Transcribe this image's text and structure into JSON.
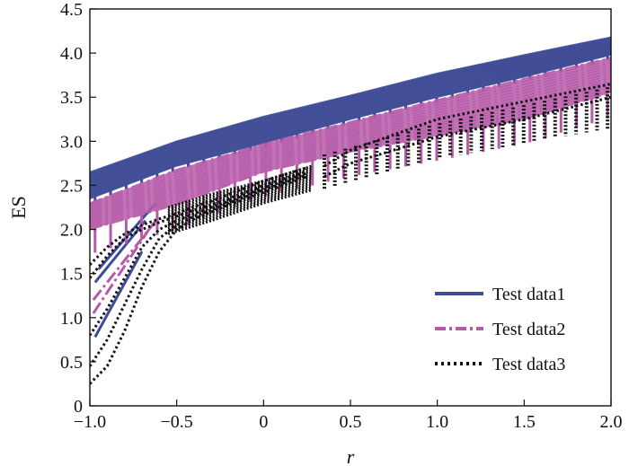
{
  "chart_data": {
    "type": "line",
    "title": "",
    "xlabel": "r",
    "ylabel": "ES",
    "xlim": [
      -1.0,
      2.0
    ],
    "ylim": [
      0,
      4.5
    ],
    "xticks": [
      -1.0,
      -0.5,
      0,
      0.5,
      1.0,
      1.5,
      2.0
    ],
    "xtick_labels": [
      "−1.0",
      "−0.5",
      "0",
      "0.5",
      "1.0",
      "1.5",
      "2.0"
    ],
    "yticks": [
      0,
      0.5,
      1.0,
      1.5,
      2.0,
      2.5,
      3.0,
      3.5,
      4.0,
      4.5
    ],
    "ytick_labels": [
      "0",
      "0.5",
      "1.0",
      "1.5",
      "2.0",
      "2.5",
      "3.0",
      "3.5",
      "4.0",
      "4.5"
    ],
    "legend_position": "bottom-right",
    "series": [
      {
        "name": "Test data1",
        "color": "#3f4b96",
        "style": "solid",
        "band_x": [
          -1.0,
          -0.5,
          0.0,
          0.5,
          1.0,
          1.5,
          2.0
        ],
        "band_upper": [
          2.65,
          3.0,
          3.28,
          3.52,
          3.77,
          3.98,
          4.18
        ],
        "band_lower": [
          2.35,
          2.72,
          2.98,
          3.25,
          3.5,
          3.73,
          3.98
        ],
        "tail_lines": [
          {
            "x": [
              -0.97,
              -0.7
            ],
            "y": [
              0.78,
              1.75
            ]
          },
          {
            "x": [
              -0.97,
              -0.68
            ],
            "y": [
              1.4,
              2.1
            ]
          },
          {
            "x": [
              -0.95,
              -0.62
            ],
            "y": [
              1.55,
              2.3
            ]
          }
        ]
      },
      {
        "name": "Test data2",
        "color": "#b65aa8",
        "style": "dash-dot",
        "band_x": [
          -1.0,
          -0.5,
          0.0,
          0.5,
          1.0,
          1.5,
          2.0
        ],
        "band_upper": [
          2.3,
          2.68,
          2.97,
          3.22,
          3.47,
          3.71,
          3.95
        ],
        "band_lower": [
          2.0,
          2.28,
          2.65,
          2.88,
          3.06,
          3.25,
          3.55
        ],
        "tail_lines": [
          {
            "x": [
              -0.98,
              -0.66
            ],
            "y": [
              1.05,
              2.0
            ]
          },
          {
            "x": [
              -0.98,
              -0.62
            ],
            "y": [
              1.2,
              2.1
            ]
          }
        ]
      },
      {
        "name": "Test data3",
        "color": "#111111",
        "style": "dotted",
        "curves": [
          {
            "x": [
              -1.0,
              -0.9,
              -0.8,
              -0.7,
              -0.6,
              -0.5,
              -0.4,
              -0.3,
              -0.2,
              0.0,
              0.25
            ],
            "y": [
              0.25,
              0.45,
              0.85,
              1.35,
              1.75,
              2.0,
              2.12,
              2.2,
              2.28,
              2.42,
              2.6
            ]
          },
          {
            "x": [
              -1.0,
              -0.9,
              -0.8,
              -0.7,
              -0.6,
              -0.5,
              -0.4,
              -0.3,
              -0.2,
              0.0,
              0.25
            ],
            "y": [
              0.45,
              0.75,
              1.15,
              1.55,
              1.9,
              2.05,
              2.15,
              2.22,
              2.3,
              2.45,
              2.62
            ]
          },
          {
            "x": [
              -1.0,
              -0.9,
              -0.8,
              -0.7,
              -0.6,
              -0.5,
              -0.4,
              -0.3,
              -0.2,
              0.0,
              0.25
            ],
            "y": [
              0.8,
              1.1,
              1.45,
              1.8,
              2.0,
              2.1,
              2.18,
              2.25,
              2.32,
              2.47,
              2.64
            ]
          },
          {
            "x": [
              -1.0,
              -0.9,
              -0.8,
              -0.7,
              -0.6,
              -0.5,
              -0.4,
              -0.3,
              -0.2,
              0.0,
              0.25
            ],
            "y": [
              1.45,
              1.7,
              1.9,
              2.0,
              2.08,
              2.15,
              2.22,
              2.28,
              2.35,
              2.5,
              2.66
            ]
          },
          {
            "x": [
              -1.0,
              -0.9,
              -0.8,
              -0.7,
              -0.6,
              -0.5,
              -0.4,
              -0.3,
              -0.2,
              0.0,
              0.25
            ],
            "y": [
              1.6,
              1.8,
              1.95,
              2.05,
              2.12,
              2.18,
              2.26,
              2.32,
              2.4,
              2.55,
              2.7
            ]
          },
          {
            "x": [
              0.35,
              0.5,
              1.0,
              1.5,
              2.0
            ],
            "y": [
              2.72,
              2.9,
              3.25,
              3.45,
              3.65
            ]
          },
          {
            "x": [
              0.35,
              0.5,
              1.0,
              1.5,
              2.0
            ],
            "y": [
              2.6,
              2.75,
              3.05,
              3.25,
              3.5
            ]
          }
        ],
        "spikes": {
          "x_start": 0.35,
          "x_end": 1.98,
          "count": 28,
          "top_x": [
            0.35,
            1.0,
            2.0
          ],
          "top_y": [
            2.85,
            3.2,
            3.62
          ],
          "bottom_x": [
            0.35,
            1.0,
            2.0
          ],
          "bottom_y": [
            2.45,
            2.8,
            3.15
          ]
        }
      }
    ]
  }
}
